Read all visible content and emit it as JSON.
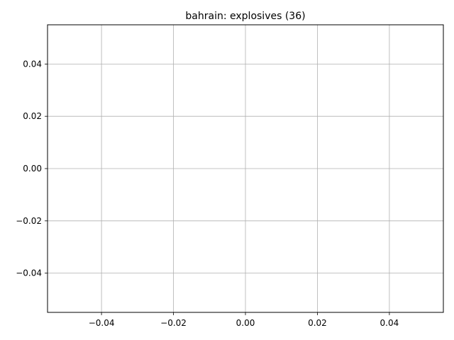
{
  "chart_data": {
    "type": "line",
    "title": "bahrain: explosives (36)",
    "xlabel": "",
    "ylabel": "",
    "xlim": [
      -0.055,
      0.055
    ],
    "ylim": [
      -0.055,
      0.055
    ],
    "x_ticks": [
      -0.04,
      -0.02,
      0.0,
      0.02,
      0.04
    ],
    "x_tick_labels": [
      "−0.04",
      "−0.02",
      "0.00",
      "0.02",
      "0.04"
    ],
    "y_ticks": [
      -0.04,
      -0.02,
      0.0,
      0.02,
      0.04
    ],
    "y_tick_labels": [
      "−0.04",
      "−0.02",
      "0.00",
      "0.02",
      "0.04"
    ],
    "grid": true,
    "series": []
  }
}
